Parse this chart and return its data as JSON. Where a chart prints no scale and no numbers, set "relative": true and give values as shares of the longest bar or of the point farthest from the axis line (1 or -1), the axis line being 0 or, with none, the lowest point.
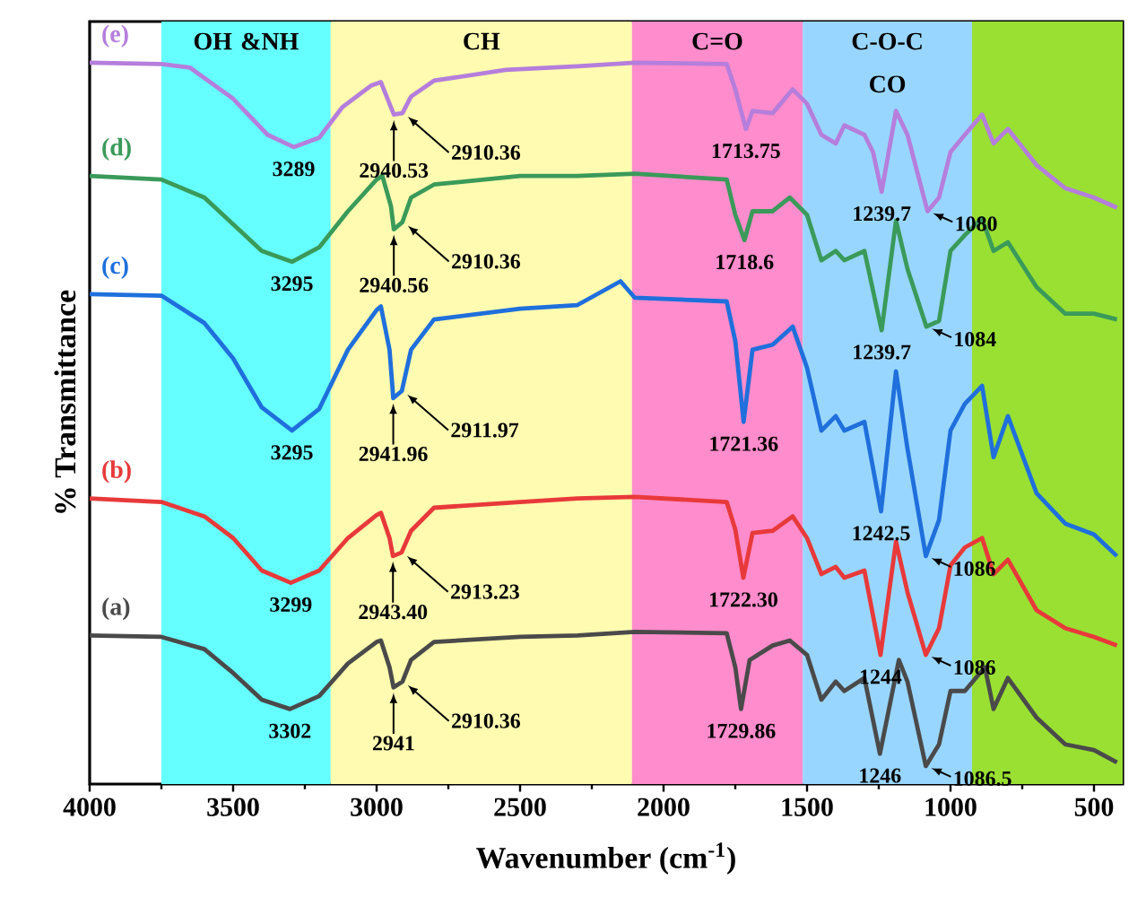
{
  "chart_data": {
    "type": "line",
    "relative": true,
    "xlabel": "Wavenumber (cm$^{-1}$)",
    "ylabel": "% Transmittance",
    "xlim": [
      4000,
      400
    ],
    "xticks": [
      4000,
      3500,
      3000,
      2500,
      2000,
      1500,
      1000,
      500
    ],
    "bands": [
      {
        "axis": "x",
        "from": 3750,
        "to": 3160,
        "label": "OH &NH",
        "color": "#66ffff"
      },
      {
        "axis": "x",
        "from": 3160,
        "to": 2110,
        "label": "CH",
        "color": "#fffbb0"
      },
      {
        "axis": "x",
        "from": 2110,
        "to": 1515,
        "label": "C=O",
        "color": "#ff8ccc"
      },
      {
        "axis": "x",
        "from": 1515,
        "to": 925,
        "label": "C-O-C CO",
        "color": "#99d6ff"
      },
      {
        "axis": "x",
        "from": 925,
        "to": 400,
        "color": "#99e033"
      }
    ],
    "series": [
      {
        "name": "(e)",
        "color": "#b57edc",
        "x": [
          4000,
          3750,
          3650,
          3500,
          3380,
          3289,
          3200,
          3120,
          3020,
          2985,
          2955,
          2940,
          2910,
          2880,
          2800,
          2550,
          2300,
          2100,
          1780,
          1750,
          1713,
          1690,
          1620,
          1550,
          1500,
          1450,
          1400,
          1370,
          1300,
          1270,
          1240,
          1190,
          1150,
          1080,
          1040,
          1000,
          950,
          890,
          850,
          800,
          700,
          600,
          500,
          420
        ],
        "values": [
          1.0,
          0.998,
          0.993,
          0.95,
          0.9,
          0.883,
          0.896,
          0.938,
          0.968,
          0.973,
          0.943,
          0.928,
          0.93,
          0.953,
          0.975,
          0.99,
          0.995,
          1.0,
          0.998,
          0.963,
          0.908,
          0.933,
          0.93,
          0.963,
          0.943,
          0.9,
          0.888,
          0.913,
          0.9,
          0.876,
          0.821,
          0.933,
          0.9,
          0.794,
          0.813,
          0.876,
          0.9,
          0.928,
          0.888,
          0.908,
          0.858,
          0.826,
          0.813,
          0.799
        ]
      },
      {
        "name": "(d)",
        "color": "#3a9a5a",
        "x": [
          4000,
          3750,
          3600,
          3500,
          3400,
          3295,
          3200,
          3100,
          3000,
          2980,
          2950,
          2940,
          2910,
          2880,
          2800,
          2500,
          2300,
          2100,
          1780,
          1750,
          1718,
          1690,
          1620,
          1560,
          1500,
          1450,
          1400,
          1370,
          1300,
          1240,
          1190,
          1150,
          1084,
          1040,
          1000,
          950,
          890,
          850,
          800,
          700,
          600,
          500,
          420
        ],
        "values": [
          0.843,
          0.838,
          0.813,
          0.776,
          0.739,
          0.724,
          0.744,
          0.794,
          0.838,
          0.843,
          0.801,
          0.769,
          0.779,
          0.813,
          0.831,
          0.843,
          0.843,
          0.846,
          0.838,
          0.789,
          0.754,
          0.794,
          0.794,
          0.813,
          0.789,
          0.726,
          0.739,
          0.726,
          0.739,
          0.629,
          0.781,
          0.714,
          0.634,
          0.642,
          0.739,
          0.761,
          0.784,
          0.739,
          0.751,
          0.689,
          0.652,
          0.652,
          0.644
        ]
      },
      {
        "name": "(c)",
        "color": "#1f6fdc",
        "x": [
          4000,
          3750,
          3600,
          3500,
          3400,
          3295,
          3200,
          3100,
          3000,
          2985,
          2955,
          2942,
          2912,
          2880,
          2800,
          2500,
          2300,
          2150,
          2100,
          1780,
          1750,
          1721,
          1690,
          1620,
          1550,
          1500,
          1450,
          1400,
          1370,
          1300,
          1242,
          1190,
          1150,
          1086,
          1040,
          1000,
          950,
          890,
          850,
          800,
          700,
          600,
          500,
          420
        ],
        "values": [
          0.679,
          0.677,
          0.639,
          0.59,
          0.522,
          0.49,
          0.52,
          0.602,
          0.657,
          0.662,
          0.602,
          0.535,
          0.545,
          0.602,
          0.644,
          0.659,
          0.664,
          0.697,
          0.674,
          0.669,
          0.614,
          0.502,
          0.602,
          0.609,
          0.634,
          0.577,
          0.49,
          0.51,
          0.49,
          0.502,
          0.378,
          0.572,
          0.465,
          0.316,
          0.366,
          0.49,
          0.527,
          0.552,
          0.453,
          0.51,
          0.403,
          0.361,
          0.346,
          0.316
        ]
      },
      {
        "name": "(b)",
        "color": "#e8393a",
        "x": [
          4000,
          3750,
          3600,
          3500,
          3400,
          3299,
          3200,
          3100,
          3000,
          2985,
          2955,
          2943,
          2913,
          2880,
          2800,
          2500,
          2300,
          2100,
          1780,
          1750,
          1722,
          1690,
          1620,
          1550,
          1500,
          1450,
          1400,
          1370,
          1300,
          1244,
          1190,
          1150,
          1086,
          1040,
          1000,
          950,
          890,
          850,
          800,
          700,
          600,
          500,
          420
        ],
        "values": [
          0.396,
          0.391,
          0.371,
          0.341,
          0.296,
          0.279,
          0.296,
          0.341,
          0.373,
          0.376,
          0.341,
          0.316,
          0.321,
          0.351,
          0.383,
          0.391,
          0.396,
          0.398,
          0.391,
          0.353,
          0.286,
          0.348,
          0.351,
          0.371,
          0.341,
          0.291,
          0.301,
          0.286,
          0.296,
          0.179,
          0.336,
          0.266,
          0.179,
          0.216,
          0.303,
          0.328,
          0.341,
          0.291,
          0.311,
          0.241,
          0.216,
          0.204,
          0.192
        ]
      },
      {
        "name": "(a)",
        "color": "#4a4a4a",
        "x": [
          4000,
          3750,
          3600,
          3500,
          3400,
          3302,
          3200,
          3100,
          3000,
          2985,
          2955,
          2941,
          2910,
          2880,
          2800,
          2500,
          2300,
          2100,
          1780,
          1750,
          1730,
          1700,
          1620,
          1560,
          1500,
          1450,
          1400,
          1370,
          1300,
          1246,
          1180,
          1150,
          1086,
          1040,
          1000,
          950,
          880,
          850,
          800,
          700,
          600,
          500,
          420
        ],
        "values": [
          0.206,
          0.204,
          0.187,
          0.154,
          0.117,
          0.104,
          0.122,
          0.167,
          0.197,
          0.199,
          0.162,
          0.134,
          0.142,
          0.172,
          0.197,
          0.204,
          0.206,
          0.211,
          0.209,
          0.162,
          0.104,
          0.172,
          0.192,
          0.199,
          0.179,
          0.117,
          0.142,
          0.129,
          0.147,
          0.042,
          0.172,
          0.142,
          0.025,
          0.055,
          0.129,
          0.129,
          0.162,
          0.104,
          0.147,
          0.092,
          0.055,
          0.047,
          0.03
        ]
      }
    ],
    "annotations": [
      {
        "text": "3289",
        "x": 3289,
        "y": 0.883
      },
      {
        "text": "2940.53",
        "x": 2940,
        "y": 0.928
      },
      {
        "text": "2910.36",
        "x": 2910,
        "y": 0.93
      },
      {
        "text": "1713.75",
        "x": 1713,
        "y": 0.908
      },
      {
        "text": "1239.7",
        "x": 1240,
        "y": 0.821
      },
      {
        "text": "1080",
        "x": 1080,
        "y": 0.794
      },
      {
        "text": "3295",
        "x": 3295,
        "y": 0.724
      },
      {
        "text": "2940.56",
        "x": 2940,
        "y": 0.769
      },
      {
        "text": "2910.36",
        "x": 2910,
        "y": 0.779
      },
      {
        "text": "1718.6",
        "x": 1718,
        "y": 0.754
      },
      {
        "text": "1239.7",
        "x": 1240,
        "y": 0.629
      },
      {
        "text": "1084",
        "x": 1084,
        "y": 0.634
      },
      {
        "text": "3295",
        "x": 3295,
        "y": 0.49
      },
      {
        "text": "2941.96",
        "x": 2942,
        "y": 0.535
      },
      {
        "text": "2911.97",
        "x": 2912,
        "y": 0.545
      },
      {
        "text": "1721.36",
        "x": 1721,
        "y": 0.502
      },
      {
        "text": "1242.5",
        "x": 1242,
        "y": 0.378
      },
      {
        "text": "1086",
        "x": 1086,
        "y": 0.316
      },
      {
        "text": "3299",
        "x": 3299,
        "y": 0.279
      },
      {
        "text": "2943.40",
        "x": 2943,
        "y": 0.316
      },
      {
        "text": "2913.23",
        "x": 2913,
        "y": 0.321
      },
      {
        "text": "1722.30",
        "x": 1722,
        "y": 0.286
      },
      {
        "text": "1244",
        "x": 1244,
        "y": 0.179
      },
      {
        "text": "1086",
        "x": 1086,
        "y": 0.179
      },
      {
        "text": "3302",
        "x": 3302,
        "y": 0.104
      },
      {
        "text": "2941",
        "x": 2941,
        "y": 0.134
      },
      {
        "text": "2910.36",
        "x": 2910,
        "y": 0.142
      },
      {
        "text": "1729.86",
        "x": 1730,
        "y": 0.104
      },
      {
        "text": "1246",
        "x": 1246,
        "y": 0.042
      },
      {
        "text": "1086.5",
        "x": 1086,
        "y": 0.025
      }
    ]
  }
}
